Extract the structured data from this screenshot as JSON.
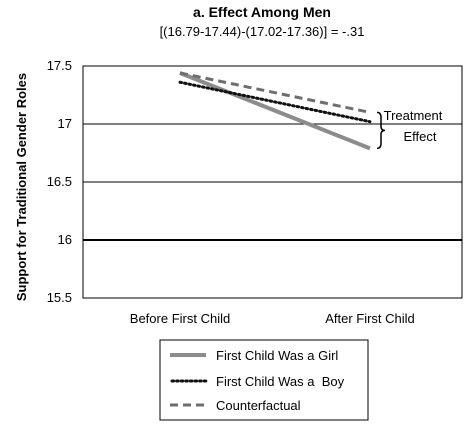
{
  "chart_data": {
    "type": "line",
    "title": "a. Effect Among Men",
    "subtitle": "[(16.79-17.44)-(17.02-17.36)] = -.31",
    "xlabel": "",
    "ylabel": "Support for Traditional Gender Roles",
    "categories": [
      "Before First Child",
      "After First Child"
    ],
    "ylim": [
      15.5,
      17.5
    ],
    "yticks": [
      "17.5",
      "17",
      "16.5",
      "16",
      "15.5"
    ],
    "grid": "horizontal",
    "legend_position": "bottom",
    "series": [
      {
        "name": "First Child Was a Girl",
        "values": [
          17.44,
          16.79
        ],
        "style": "solid",
        "color": "#8c8c8c"
      },
      {
        "name": "First Child Was a  Boy",
        "values": [
          17.36,
          17.02
        ],
        "style": "dotted",
        "color": "#111111"
      },
      {
        "name": "Counterfactual",
        "values": [
          17.44,
          17.1
        ],
        "style": "dashed",
        "color": "#6e6e6e"
      }
    ],
    "annotation": {
      "line1": "Treatment",
      "line2": "Effect"
    }
  }
}
